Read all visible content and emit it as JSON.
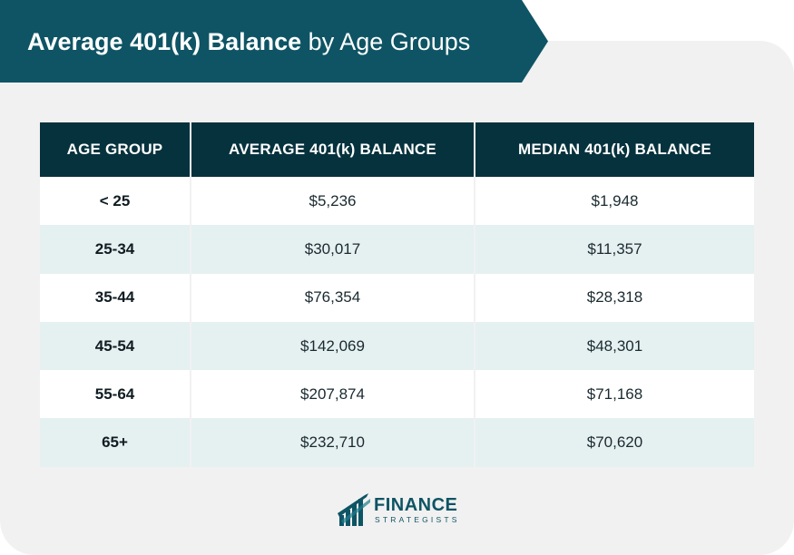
{
  "title": {
    "bold": "Average 401(k) Balance",
    "regular": " by Age Groups"
  },
  "table": {
    "headers": [
      "AGE GROUP",
      "AVERAGE 401(k) BALANCE",
      "MEDIAN 401(k) BALANCE"
    ],
    "rows": [
      {
        "age": "< 25",
        "average": "$5,236",
        "median": "$1,948"
      },
      {
        "age": "25-34",
        "average": "$30,017",
        "median": "$11,357"
      },
      {
        "age": "35-44",
        "average": "$76,354",
        "median": "$28,318"
      },
      {
        "age": "45-54",
        "average": "$142,069",
        "median": "$48,301"
      },
      {
        "age": "55-64",
        "average": "$207,874",
        "median": "$71,168"
      },
      {
        "age": "65+",
        "average": "$232,710",
        "median": "$70,620"
      }
    ]
  },
  "logo": {
    "name": "FINANCE",
    "sub": "STRATEGISTS"
  },
  "colors": {
    "banner": "#0e5464",
    "header": "#06323d",
    "stripe": "#e5f0f1",
    "card": "#f1f1f1"
  }
}
